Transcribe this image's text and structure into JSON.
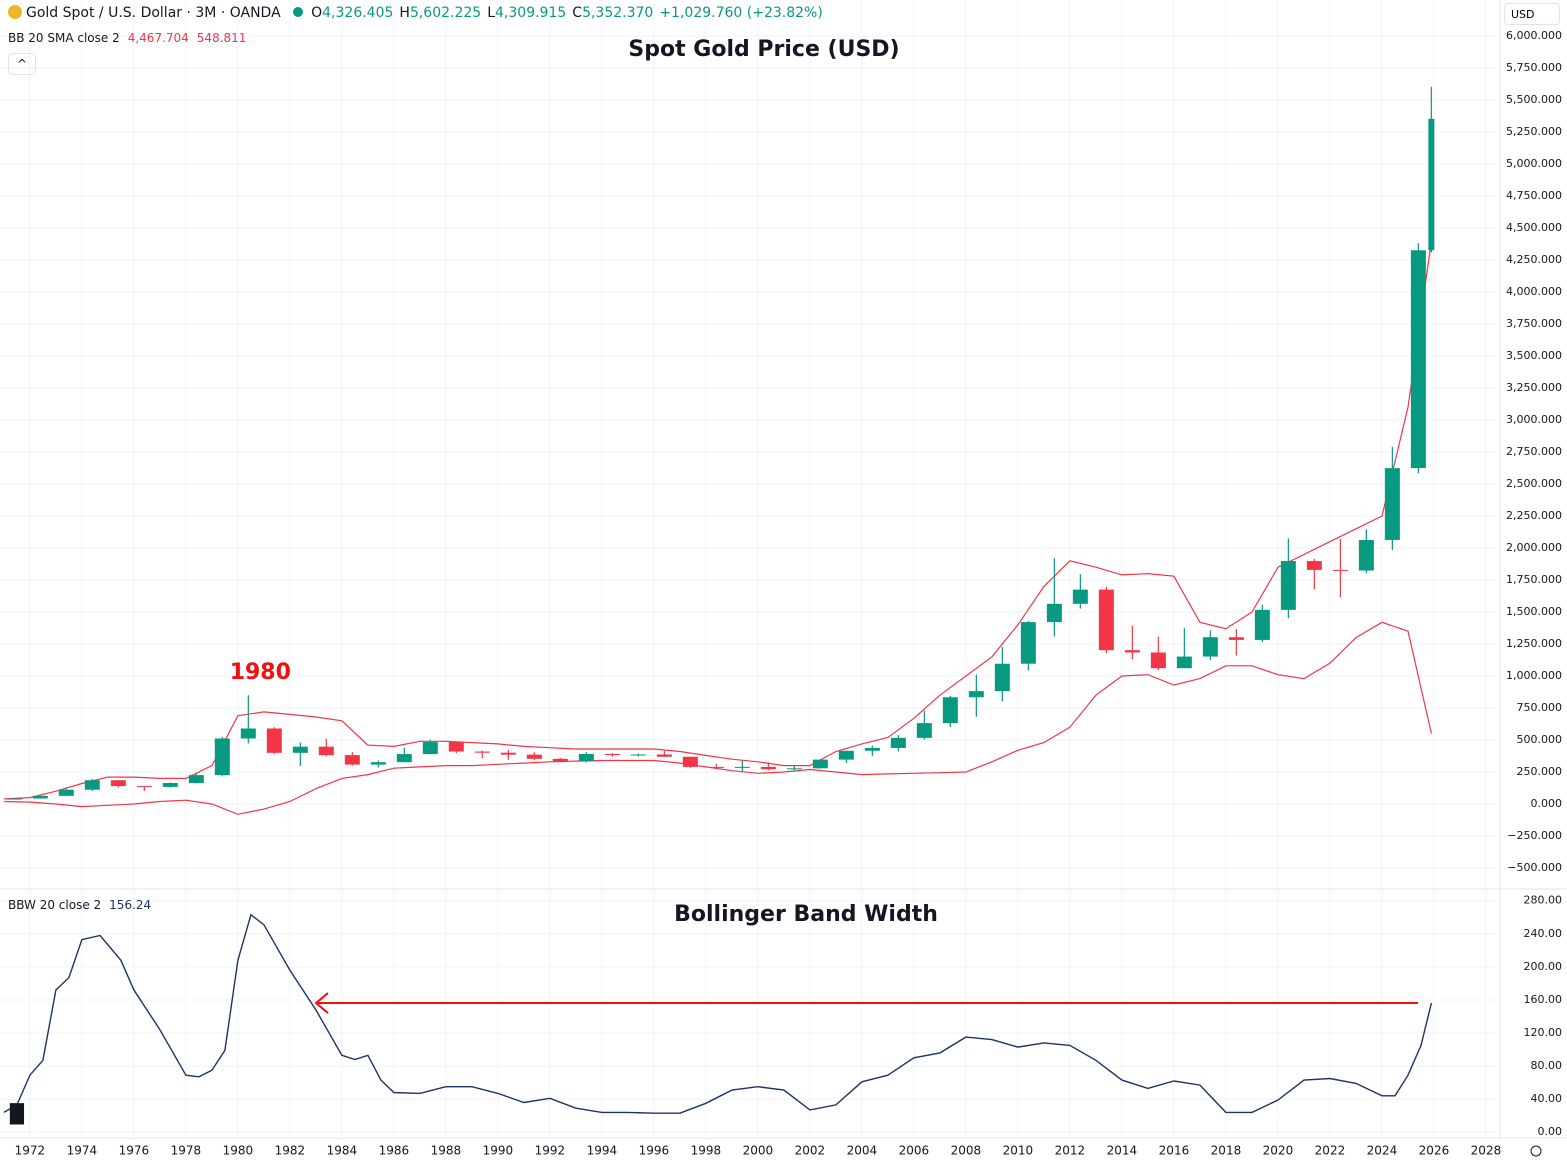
{
  "header": {
    "symbol": "Gold Spot / U.S. Dollar · 3M · OANDA",
    "ohlc": [
      {
        "label": "O",
        "value": "4,326.405"
      },
      {
        "label": "H",
        "value": "5,602.225"
      },
      {
        "label": "L",
        "value": "4,309.915"
      },
      {
        "label": "C",
        "value": "5,352.370"
      }
    ],
    "change": "+1,029.760 (+23.82%)",
    "currency": "USD"
  },
  "chart_data": [
    {
      "type": "candlestick",
      "title": "Spot Gold Price (USD)",
      "annotation": "1980",
      "indicator": {
        "name": "BB 20 SMA close 2",
        "values": [
          "4,467.704",
          "548.811"
        ],
        "color": "#f23645"
      },
      "up_color": "#089981",
      "down_color": "#f23645",
      "x": [
        1971.4,
        1972.4,
        1973.4,
        1974.4,
        1975.4,
        1976.4,
        1977.4,
        1978.4,
        1979.4,
        1980.4,
        1981.4,
        1982.4,
        1983.4,
        1984.4,
        1985.4,
        1986.4,
        1987.4,
        1988.4,
        1989.4,
        1990.4,
        1991.4,
        1992.4,
        1993.4,
        1994.4,
        1995.4,
        1996.4,
        1997.4,
        1998.4,
        1999.4,
        2000.4,
        2001.4,
        2002.4,
        2003.4,
        2004.4,
        2005.4,
        2006.4,
        2007.4,
        2008.4,
        2009.4,
        2010.4,
        2011.4,
        2012.4,
        2013.4,
        2014.4,
        2015.4,
        2016.4,
        2017.4,
        2018.4,
        2019.4,
        2020.4,
        2021.4,
        2022.4,
        2023.4,
        2024.4,
        2025.4,
        2025.9
      ],
      "open": [
        35,
        43,
        64,
        112,
        186,
        140,
        134,
        164,
        226,
        512,
        590,
        400,
        448,
        382,
        308,
        327,
        390,
        484,
        410,
        401,
        386,
        353,
        333,
        391,
        383,
        387,
        369,
        290,
        288,
        290,
        272,
        279,
        347,
        416,
        438,
        517,
        632,
        834,
        882,
        1096,
        1421,
        1564,
        1675,
        1202,
        1184,
        1061,
        1152,
        1303,
        1282,
        1517,
        1898,
        1829,
        1824,
        2063,
        2624,
        4326.405
      ],
      "high": [
        44,
        66,
        127,
        197,
        186,
        141,
        168,
        245,
        524,
        850,
        600,
        481,
        510,
        406,
        341,
        440,
        502,
        485,
        418,
        424,
        404,
        360,
        406,
        396,
        396,
        417,
        371,
        315,
        338,
        326,
        296,
        349,
        417,
        455,
        538,
        730,
        845,
        1011,
        1227,
        1431,
        1921,
        1796,
        1696,
        1392,
        1308,
        1375,
        1357,
        1366,
        1557,
        2075,
        1916,
        2070,
        2145,
        2790,
        4381,
        5602.225
      ],
      "low": [
        35,
        43,
        63,
        102,
        129,
        103,
        129,
        160,
        216,
        474,
        391,
        297,
        374,
        303,
        285,
        326,
        388,
        396,
        358,
        345,
        344,
        330,
        326,
        369,
        372,
        367,
        283,
        273,
        252,
        263,
        256,
        277,
        320,
        375,
        411,
        503,
        602,
        681,
        802,
        1044,
        1308,
        1527,
        1180,
        1132,
        1046,
        1061,
        1124,
        1160,
        1266,
        1451,
        1677,
        1615,
        1804,
        1984,
        2584,
        4309.915
      ],
      "close": [
        43,
        64,
        112,
        186,
        140,
        134,
        164,
        226,
        512,
        590,
        400,
        448,
        382,
        308,
        327,
        390,
        484,
        410,
        401,
        386,
        353,
        333,
        391,
        383,
        387,
        369,
        290,
        288,
        290,
        272,
        279,
        347,
        416,
        438,
        517,
        632,
        834,
        882,
        1096,
        1421,
        1564,
        1675,
        1202,
        1184,
        1061,
        1152,
        1303,
        1282,
        1517,
        1898,
        1829,
        1824,
        2063,
        2624,
        4326,
        5352.37
      ],
      "bands": {
        "color": "#f23645",
        "x": [
          1971,
          1972,
          1973,
          1974,
          1975,
          1976,
          1977,
          1978,
          1979,
          1980,
          1981,
          1982,
          1983,
          1984,
          1985,
          1986,
          1987,
          1988,
          1989,
          1990,
          1991,
          1992,
          1993,
          1994,
          1995,
          1996,
          1997,
          1998,
          1999,
          2000,
          2001,
          2002,
          2003,
          2004,
          2005,
          2006,
          2007,
          2008,
          2009,
          2010,
          2011,
          2012,
          2013,
          2014,
          2015,
          2016,
          2017,
          2018,
          2019,
          2020,
          2021,
          2022,
          2023,
          2024,
          2025,
          2025.9
        ],
        "upper": [
          40,
          50,
          100,
          160,
          210,
          210,
          200,
          200,
          300,
          690,
          720,
          700,
          680,
          650,
          460,
          450,
          490,
          490,
          480,
          470,
          450,
          440,
          430,
          430,
          430,
          430,
          410,
          380,
          350,
          330,
          300,
          300,
          410,
          470,
          520,
          670,
          850,
          1000,
          1150,
          1400,
          1700,
          1900,
          1850,
          1790,
          1800,
          1780,
          1420,
          1370,
          1500,
          1850,
          1950,
          2050,
          2150,
          2250,
          3100,
          4400
        ],
        "lower": [
          20,
          15,
          0,
          -20,
          -10,
          0,
          20,
          30,
          0,
          -80,
          -40,
          20,
          120,
          200,
          230,
          280,
          290,
          300,
          300,
          310,
          320,
          330,
          335,
          340,
          340,
          340,
          320,
          290,
          260,
          240,
          250,
          270,
          250,
          230,
          235,
          240,
          245,
          250,
          330,
          420,
          480,
          600,
          850,
          1000,
          1010,
          930,
          980,
          1080,
          1080,
          1010,
          980,
          1100,
          1300,
          1420,
          1350,
          550
        ]
      },
      "xlim": [
        1970.85,
        2028.54
      ],
      "ylim": [
        -656,
        6281
      ],
      "grid": true,
      "yticks": [
        {
          "value": -500,
          "label": "−500.000"
        },
        {
          "value": -250,
          "label": "−250.000"
        },
        {
          "value": 0,
          "label": "0.000"
        },
        {
          "value": 250,
          "label": "250.000"
        },
        {
          "value": 500,
          "label": "500.000"
        },
        {
          "value": 750,
          "label": "750.000"
        },
        {
          "value": 1000,
          "label": "1,000.000"
        },
        {
          "value": 1250,
          "label": "1,250.000"
        },
        {
          "value": 1500,
          "label": "1,500.000"
        },
        {
          "value": 1750,
          "label": "1,750.000"
        },
        {
          "value": 2000,
          "label": "2,000.000"
        },
        {
          "value": 2250,
          "label": "2,250.000"
        },
        {
          "value": 2500,
          "label": "2,500.000"
        },
        {
          "value": 2750,
          "label": "2,750.000"
        },
        {
          "value": 3000,
          "label": "3,000.000"
        },
        {
          "value": 3250,
          "label": "3,250.000"
        },
        {
          "value": 3500,
          "label": "3,500.000"
        },
        {
          "value": 3750,
          "label": "3,750.000"
        },
        {
          "value": 4000,
          "label": "4,000.000"
        },
        {
          "value": 4250,
          "label": "4,250.000"
        },
        {
          "value": 4500,
          "label": "4,500.000"
        },
        {
          "value": 4750,
          "label": "4,750.000"
        },
        {
          "value": 5000,
          "label": "5,000.000"
        },
        {
          "value": 5250,
          "label": "5,250.000"
        },
        {
          "value": 5500,
          "label": "5,500.000"
        },
        {
          "value": 5750,
          "label": "5,750.000"
        },
        {
          "value": 6000,
          "label": "6,000.000"
        }
      ]
    },
    {
      "type": "line",
      "title": "Bollinger Band Width",
      "indicator": {
        "name": "BBW 20 close 2"
      },
      "color": "#1f3266",
      "x": [
        1971,
        1971.5,
        1972,
        1972.5,
        1973,
        1973.5,
        1974,
        1974.7,
        1975.5,
        1976,
        1977,
        1978,
        1978.5,
        1979,
        1979.5,
        1980,
        1980.5,
        1981,
        1982,
        1983,
        1984,
        1984.5,
        1985,
        1985.5,
        1986,
        1987,
        1988,
        1989,
        1990,
        1991,
        1992,
        1993,
        1994,
        1995,
        1996,
        1997,
        1998,
        1999,
        2000,
        2001,
        2002,
        2003,
        2004,
        2005,
        2006,
        2007,
        2008,
        2009,
        2010,
        2011,
        2012,
        2013,
        2014,
        2015,
        2016,
        2017,
        2018,
        2019,
        2020,
        2021,
        2022,
        2023,
        2024,
        2024.5,
        2025,
        2025.5,
        2025.9
      ],
      "values": [
        24,
        33,
        69,
        87,
        172,
        187,
        233,
        238,
        208,
        172,
        124,
        69,
        67,
        75,
        99,
        208,
        263,
        251,
        196,
        148,
        93,
        88,
        93,
        63,
        48,
        47,
        55,
        55,
        47,
        36,
        41,
        29,
        24,
        24,
        23,
        23,
        35,
        51,
        55,
        51,
        27,
        33,
        61,
        69,
        90,
        96,
        115,
        112,
        103,
        108,
        105,
        87,
        63,
        53,
        62,
        57,
        24,
        24,
        39,
        63,
        65,
        59,
        44,
        44,
        69,
        105,
        156.24
      ],
      "xlim": [
        1970.85,
        2028.54
      ],
      "ylim": [
        -7,
        293
      ],
      "grid": true,
      "xticks": [
        1972,
        1974,
        1976,
        1978,
        1980,
        1982,
        1984,
        1986,
        1988,
        1990,
        1992,
        1994,
        1996,
        1998,
        2000,
        2002,
        2004,
        2006,
        2008,
        2010,
        2012,
        2014,
        2016,
        2018,
        2020,
        2022,
        2024,
        2026,
        2028
      ],
      "yticks": [
        {
          "value": 0,
          "label": "0.00"
        },
        {
          "value": 40,
          "label": "40.00"
        },
        {
          "value": 80,
          "label": "80.00"
        },
        {
          "value": 120,
          "label": "120.00"
        },
        {
          "value": 160,
          "label": "160.00"
        },
        {
          "value": 200,
          "label": "200.00"
        },
        {
          "value": 240,
          "label": "240.00"
        },
        {
          "value": 280,
          "label": "280.00"
        }
      ]
    }
  ]
}
